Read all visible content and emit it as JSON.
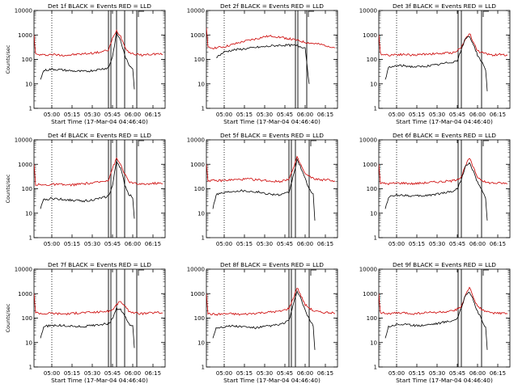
{
  "chart_data": [
    {
      "type": "line",
      "title": "Det 1f BLACK = Events  RED = LLD",
      "ylabel": "Counts/sec",
      "xlabel": "Start Time (17-Mar-04 04:46:40)",
      "yscale": "log",
      "ylim": [
        1,
        10000
      ],
      "xlim": [
        4.78,
        6.4
      ],
      "ytick_labels": [
        "1",
        "10",
        "100",
        "1000",
        "10000"
      ],
      "xtick_labels": [
        "05:00",
        "05:15",
        "05:30",
        "05:45",
        "06:00",
        "06:15"
      ],
      "dotted_vline": 5.0,
      "solid_vlines": [
        5.7,
        5.73,
        5.8,
        5.9,
        6.05
      ],
      "series": [
        {
          "color": "#cc0000",
          "x": [
            4.78,
            4.8,
            4.9,
            5.0,
            5.1,
            5.2,
            5.3,
            5.4,
            5.5,
            5.6,
            5.7,
            5.75,
            5.8,
            5.85,
            5.9,
            5.95,
            6.0,
            6.05,
            6.1,
            6.2,
            6.3,
            6.37
          ],
          "values": [
            1000,
            160,
            150,
            160,
            150,
            150,
            160,
            170,
            180,
            200,
            240,
            700,
            1500,
            900,
            350,
            200,
            170,
            160,
            150,
            160,
            170,
            160
          ]
        },
        {
          "color": "#000000",
          "x": [
            4.86,
            4.9,
            5.0,
            5.1,
            5.2,
            5.3,
            5.4,
            5.5,
            5.6,
            5.7,
            5.75,
            5.8,
            5.85,
            5.9,
            5.95,
            6.0,
            6.02
          ],
          "values": [
            15,
            35,
            40,
            38,
            35,
            33,
            32,
            35,
            40,
            45,
            130,
            1200,
            600,
            150,
            60,
            45,
            6
          ]
        }
      ]
    },
    {
      "type": "line",
      "title": "Det 2f BLACK = Events  RED = LLD",
      "ylabel": "",
      "xlabel": "Start Time (17-Mar-04 04:46:40)",
      "yscale": "log",
      "ylim": [
        1,
        10000
      ],
      "xlim": [
        4.78,
        6.4
      ],
      "ytick_labels": [
        "1",
        "10",
        "100",
        "1000",
        "10000"
      ],
      "xtick_labels": [
        "05:00",
        "05:15",
        "05:30",
        "05:45",
        "06:00",
        "06:15"
      ],
      "dotted_vline": 5.0,
      "solid_vlines": [
        5.88,
        5.91,
        6.02
      ],
      "series": [
        {
          "color": "#cc0000",
          "x": [
            4.78,
            4.8,
            4.9,
            5.0,
            5.1,
            5.2,
            5.3,
            5.4,
            5.5,
            5.6,
            5.7,
            5.8,
            5.9,
            6.0,
            6.1,
            6.2,
            6.3,
            6.37
          ],
          "values": [
            2000,
            300,
            300,
            330,
            400,
            500,
            600,
            700,
            850,
            900,
            800,
            700,
            600,
            500,
            450,
            400,
            350,
            300
          ]
        },
        {
          "color": "#000000",
          "x": [
            4.9,
            5.0,
            5.1,
            5.2,
            5.3,
            5.4,
            5.5,
            5.6,
            5.7,
            5.8,
            5.9,
            6.0,
            6.05
          ],
          "values": [
            120,
            200,
            240,
            260,
            280,
            310,
            330,
            360,
            380,
            380,
            360,
            300,
            10
          ]
        }
      ]
    },
    {
      "type": "line",
      "title": "Det 3f BLACK = Events  RED = LLD",
      "ylabel": "",
      "xlabel": "Start Time (17-Mar-04 04:46:40)",
      "yscale": "log",
      "ylim": [
        1,
        10000
      ],
      "xlim": [
        4.78,
        6.4
      ],
      "ytick_labels": [
        "1",
        "10",
        "100",
        "1000",
        "10000"
      ],
      "xtick_labels": [
        "05:00",
        "05:15",
        "05:30",
        "05:45",
        "06:00",
        "06:15"
      ],
      "dotted_vline": 5.0,
      "solid_vlines": [
        5.76,
        5.8,
        6.05
      ],
      "series": [
        {
          "color": "#cc0000",
          "x": [
            4.78,
            4.8,
            4.9,
            5.0,
            5.1,
            5.2,
            5.3,
            5.4,
            5.5,
            5.6,
            5.7,
            5.8,
            5.85,
            5.9,
            5.95,
            6.0,
            6.1,
            6.2,
            6.3,
            6.37
          ],
          "values": [
            1000,
            170,
            150,
            160,
            160,
            150,
            160,
            170,
            170,
            180,
            190,
            300,
            700,
            1200,
            500,
            220,
            170,
            150,
            160,
            150
          ]
        },
        {
          "color": "#000000",
          "x": [
            4.86,
            4.9,
            5.0,
            5.1,
            5.2,
            5.3,
            5.4,
            5.5,
            5.6,
            5.7,
            5.75,
            5.8,
            5.85,
            5.9,
            5.95,
            6.0,
            6.05,
            6.1,
            6.12
          ],
          "values": [
            15,
            45,
            55,
            55,
            50,
            50,
            55,
            60,
            70,
            80,
            90,
            250,
            700,
            900,
            400,
            150,
            80,
            40,
            5
          ]
        }
      ]
    },
    {
      "type": "line",
      "title": "Det 4f BLACK = Events  RED = LLD",
      "ylabel": "Counts/sec",
      "xlabel": "",
      "yscale": "log",
      "ylim": [
        1,
        10000
      ],
      "xlim": [
        4.78,
        6.4
      ],
      "ytick_labels": [
        "1",
        "10",
        "100",
        "1000",
        "10000"
      ],
      "xtick_labels": [
        "05:00",
        "05:15",
        "05:30",
        "05:45",
        "06:00",
        "06:15"
      ],
      "dotted_vline": 5.0,
      "solid_vlines": [
        5.7,
        5.73,
        5.8,
        5.9,
        6.05
      ],
      "series": [
        {
          "color": "#cc0000",
          "x": [
            4.78,
            4.8,
            4.9,
            5.0,
            5.1,
            5.2,
            5.3,
            5.4,
            5.5,
            5.6,
            5.7,
            5.75,
            5.8,
            5.85,
            5.9,
            5.95,
            6.0,
            6.05,
            6.1,
            6.2,
            6.3,
            6.37
          ],
          "values": [
            1000,
            150,
            140,
            150,
            150,
            140,
            150,
            160,
            170,
            190,
            230,
            700,
            1700,
            1000,
            400,
            200,
            170,
            160,
            150,
            160,
            170,
            160
          ]
        },
        {
          "color": "#000000",
          "x": [
            4.86,
            4.9,
            5.0,
            5.1,
            5.2,
            5.3,
            5.4,
            5.5,
            5.6,
            5.7,
            5.75,
            5.8,
            5.85,
            5.9,
            5.95,
            6.0,
            6.02
          ],
          "values": [
            15,
            35,
            40,
            38,
            35,
            33,
            32,
            35,
            40,
            50,
            130,
            1400,
            700,
            150,
            60,
            45,
            6
          ]
        }
      ]
    },
    {
      "type": "line",
      "title": "Det 5f BLACK = Events  RED = LLD",
      "ylabel": "",
      "xlabel": "",
      "yscale": "log",
      "ylim": [
        1,
        10000
      ],
      "xlim": [
        4.78,
        6.4
      ],
      "ytick_labels": [
        "1",
        "10",
        "100",
        "1000",
        "10000"
      ],
      "xtick_labels": [
        "05:00",
        "05:15",
        "05:30",
        "05:45",
        "06:00",
        "06:15"
      ],
      "dotted_vline": 5.0,
      "solid_vlines": [
        5.8,
        5.83,
        5.88,
        6.05
      ],
      "series": [
        {
          "color": "#cc0000",
          "x": [
            4.78,
            4.8,
            4.9,
            5.0,
            5.1,
            5.2,
            5.3,
            5.4,
            5.5,
            5.6,
            5.7,
            5.8,
            5.85,
            5.9,
            5.95,
            6.0,
            6.1,
            6.2,
            6.3,
            6.37
          ],
          "values": [
            1000,
            220,
            210,
            220,
            230,
            240,
            250,
            230,
            220,
            200,
            200,
            260,
            600,
            1900,
            900,
            400,
            260,
            230,
            230,
            200
          ]
        },
        {
          "color": "#000000",
          "x": [
            4.86,
            4.9,
            5.0,
            5.1,
            5.2,
            5.3,
            5.4,
            5.5,
            5.6,
            5.7,
            5.8,
            5.85,
            5.9,
            5.95,
            6.0,
            6.05,
            6.1,
            6.12
          ],
          "values": [
            15,
            60,
            70,
            80,
            85,
            80,
            75,
            65,
            60,
            55,
            70,
            300,
            1500,
            700,
            250,
            100,
            60,
            5
          ]
        }
      ]
    },
    {
      "type": "line",
      "title": "Det 6f BLACK = Events  RED = LLD",
      "ylabel": "",
      "xlabel": "",
      "yscale": "log",
      "ylim": [
        1,
        10000
      ],
      "xlim": [
        4.78,
        6.4
      ],
      "ytick_labels": [
        "1",
        "10",
        "100",
        "1000",
        "10000"
      ],
      "xtick_labels": [
        "05:00",
        "05:15",
        "05:30",
        "05:45",
        "06:00",
        "06:15"
      ],
      "dotted_vline": 5.0,
      "solid_vlines": [
        5.76,
        5.8,
        6.05
      ],
      "series": [
        {
          "color": "#cc0000",
          "x": [
            4.78,
            4.8,
            4.9,
            5.0,
            5.1,
            5.2,
            5.3,
            5.4,
            5.5,
            5.6,
            5.7,
            5.8,
            5.85,
            5.9,
            5.95,
            6.0,
            6.1,
            6.2,
            6.3,
            6.37
          ],
          "values": [
            1000,
            170,
            160,
            170,
            170,
            160,
            170,
            180,
            190,
            200,
            210,
            300,
            900,
            1800,
            700,
            300,
            180,
            170,
            170,
            160
          ]
        },
        {
          "color": "#000000",
          "x": [
            4.86,
            4.9,
            5.0,
            5.1,
            5.2,
            5.3,
            5.4,
            5.5,
            5.6,
            5.7,
            5.75,
            5.8,
            5.85,
            5.9,
            5.95,
            6.0,
            6.05,
            6.1,
            6.12
          ],
          "values": [
            15,
            45,
            55,
            55,
            50,
            50,
            55,
            60,
            70,
            80,
            100,
            250,
            800,
            1100,
            500,
            180,
            90,
            40,
            5
          ]
        }
      ]
    },
    {
      "type": "line",
      "title": "Det 7f BLACK = Events  RED = LLD",
      "ylabel": "Counts/sec",
      "xlabel": "Start Time (17-Mar-04 04:46:40)",
      "yscale": "log",
      "ylim": [
        1,
        10000
      ],
      "xlim": [
        4.78,
        6.4
      ],
      "ytick_labels": [
        "1",
        "10",
        "100",
        "1000",
        "10000"
      ],
      "xtick_labels": [
        "05:00",
        "05:15",
        "05:30",
        "05:45",
        "06:00",
        "06:15"
      ],
      "dotted_vline": 5.0,
      "solid_vlines": [
        5.7,
        5.73,
        5.8,
        5.9,
        6.05
      ],
      "series": [
        {
          "color": "#cc0000",
          "x": [
            4.78,
            4.8,
            4.9,
            5.0,
            5.1,
            5.2,
            5.3,
            5.4,
            5.5,
            5.6,
            5.7,
            5.75,
            5.8,
            5.85,
            5.9,
            5.95,
            6.0,
            6.05,
            6.1,
            6.2,
            6.3,
            6.37
          ],
          "values": [
            1000,
            170,
            150,
            160,
            150,
            150,
            160,
            170,
            170,
            180,
            190,
            220,
            350,
            500,
            300,
            200,
            170,
            160,
            150,
            160,
            170,
            160
          ]
        },
        {
          "color": "#000000",
          "x": [
            4.86,
            4.9,
            5.0,
            5.1,
            5.2,
            5.3,
            5.4,
            5.5,
            5.6,
            5.7,
            5.75,
            5.8,
            5.85,
            5.9,
            5.95,
            6.0,
            6.02
          ],
          "values": [
            15,
            45,
            50,
            50,
            48,
            45,
            45,
            50,
            55,
            60,
            90,
            250,
            220,
            120,
            60,
            45,
            6
          ]
        }
      ]
    },
    {
      "type": "line",
      "title": "Det 8f BLACK = Events  RED = LLD",
      "ylabel": "",
      "xlabel": "Start Time (17-Mar-04 04:46:40)",
      "yscale": "log",
      "ylim": [
        1,
        10000
      ],
      "xlim": [
        4.78,
        6.4
      ],
      "ytick_labels": [
        "1",
        "10",
        "100",
        "1000",
        "10000"
      ],
      "xtick_labels": [
        "05:00",
        "05:15",
        "05:30",
        "05:45",
        "06:00",
        "06:15"
      ],
      "dotted_vline": 5.0,
      "solid_vlines": [
        5.8,
        5.83,
        5.88,
        6.05
      ],
      "series": [
        {
          "color": "#cc0000",
          "x": [
            4.78,
            4.8,
            4.9,
            5.0,
            5.1,
            5.2,
            5.3,
            5.4,
            5.5,
            5.6,
            5.7,
            5.8,
            5.85,
            5.9,
            5.95,
            6.0,
            6.1,
            6.2,
            6.3,
            6.37
          ],
          "values": [
            1000,
            150,
            140,
            150,
            150,
            140,
            150,
            160,
            170,
            180,
            190,
            250,
            600,
            1800,
            800,
            350,
            200,
            170,
            170,
            150
          ]
        },
        {
          "color": "#000000",
          "x": [
            4.86,
            4.9,
            5.0,
            5.1,
            5.2,
            5.3,
            5.4,
            5.5,
            5.6,
            5.7,
            5.8,
            5.85,
            5.9,
            5.95,
            6.0,
            6.05,
            6.1,
            6.12
          ],
          "values": [
            15,
            40,
            45,
            48,
            45,
            42,
            40,
            45,
            50,
            55,
            80,
            300,
            1300,
            600,
            200,
            90,
            50,
            5
          ]
        }
      ]
    },
    {
      "type": "line",
      "title": "Det 9f BLACK = Events  RED = LLD",
      "ylabel": "",
      "xlabel": "Start Time (17-Mar-04 04:46:40)",
      "yscale": "log",
      "ylim": [
        1,
        10000
      ],
      "xlim": [
        4.78,
        6.4
      ],
      "ytick_labels": [
        "1",
        "10",
        "100",
        "1000",
        "10000"
      ],
      "xtick_labels": [
        "05:00",
        "05:15",
        "05:30",
        "05:45",
        "06:00",
        "06:15"
      ],
      "dotted_vline": 5.0,
      "solid_vlines": [
        5.76,
        5.8,
        6.05
      ],
      "series": [
        {
          "color": "#cc0000",
          "x": [
            4.78,
            4.8,
            4.9,
            5.0,
            5.1,
            5.2,
            5.3,
            5.4,
            5.5,
            5.6,
            5.7,
            5.8,
            5.85,
            5.9,
            5.95,
            6.0,
            6.1,
            6.2,
            6.3,
            6.37
          ],
          "values": [
            1000,
            170,
            150,
            160,
            160,
            150,
            160,
            170,
            170,
            180,
            190,
            300,
            800,
            1800,
            700,
            300,
            180,
            160,
            160,
            150
          ]
        },
        {
          "color": "#000000",
          "x": [
            4.86,
            4.9,
            5.0,
            5.1,
            5.2,
            5.3,
            5.4,
            5.5,
            5.6,
            5.7,
            5.75,
            5.8,
            5.85,
            5.9,
            5.95,
            6.0,
            6.05,
            6.1,
            6.12
          ],
          "values": [
            15,
            45,
            55,
            55,
            50,
            50,
            55,
            60,
            70,
            80,
            100,
            250,
            900,
            1200,
            500,
            180,
            90,
            40,
            5
          ]
        }
      ]
    }
  ]
}
